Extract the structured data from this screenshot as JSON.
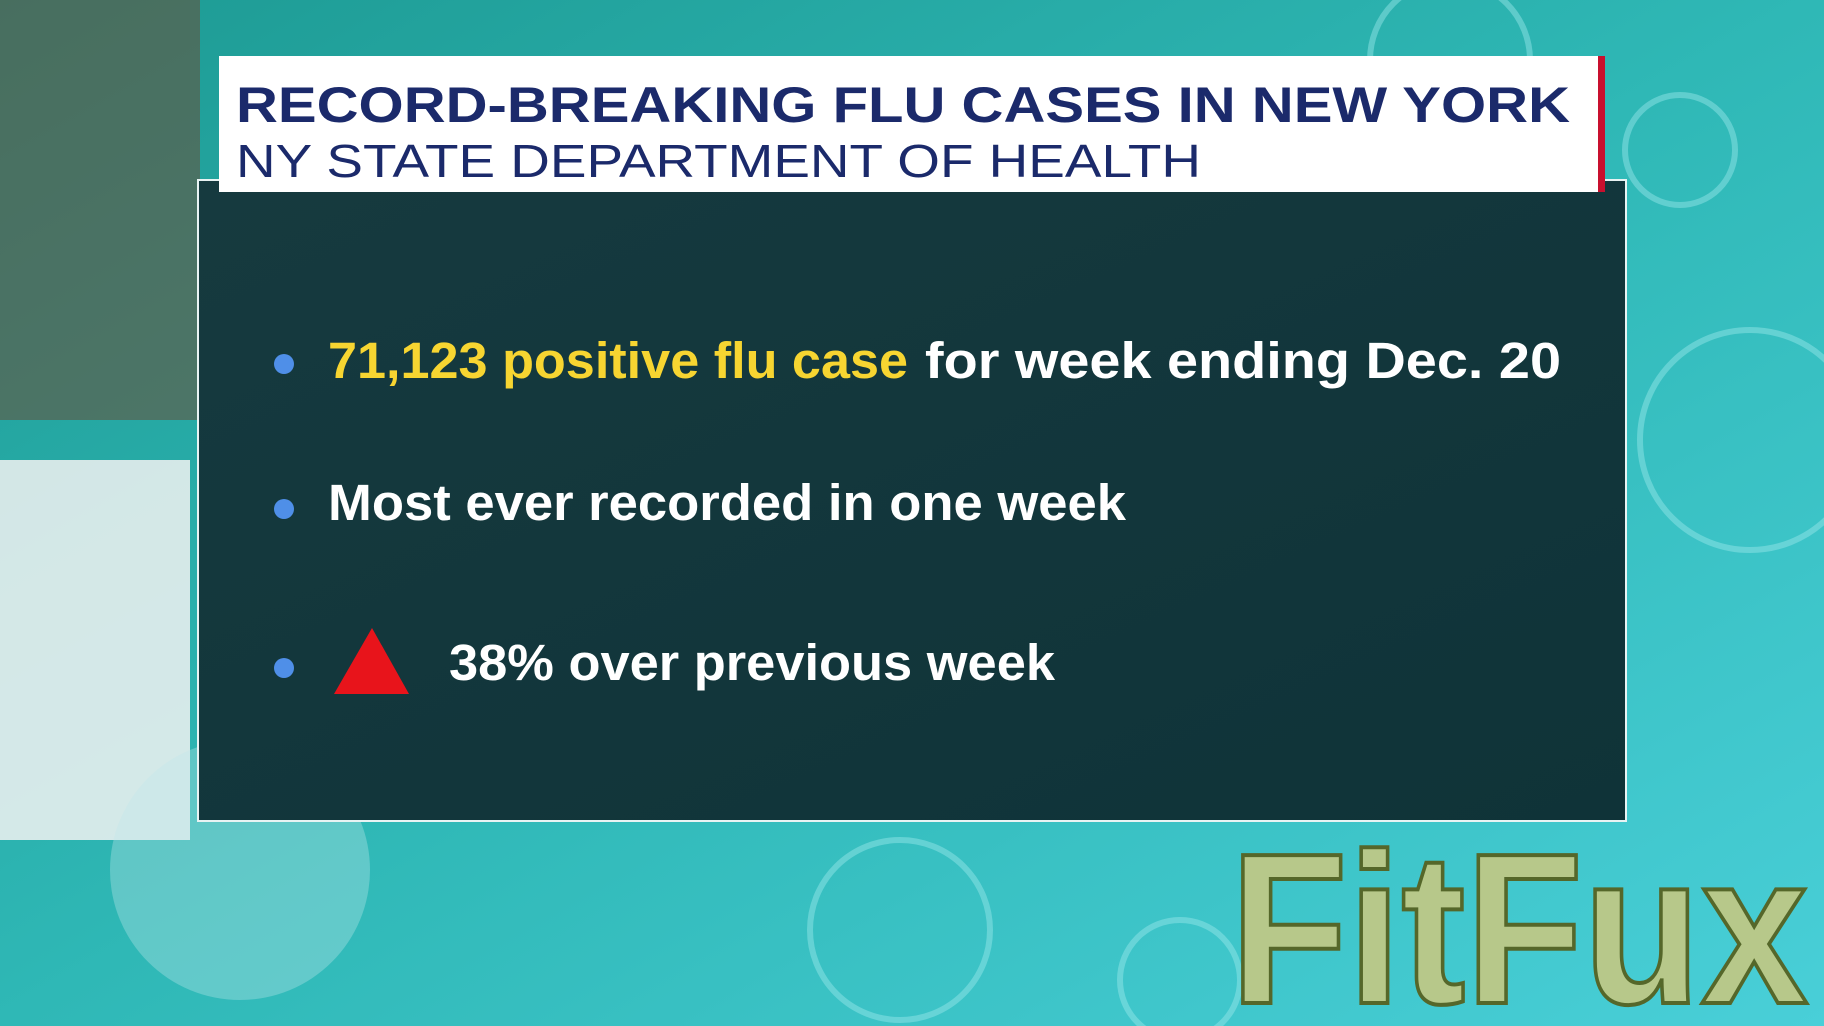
{
  "header": {
    "title": "RECORD-BREAKING FLU CASES IN NEW YORK",
    "subtitle": "NY STATE DEPARTMENT OF HEALTH"
  },
  "bullets": [
    {
      "highlight": "71,123 positive flu case",
      "text": "for week ending Dec. 20"
    },
    {
      "text": "Most ever recorded in one week"
    },
    {
      "text": "38% over previous week"
    }
  ],
  "watermark": "FitFux"
}
